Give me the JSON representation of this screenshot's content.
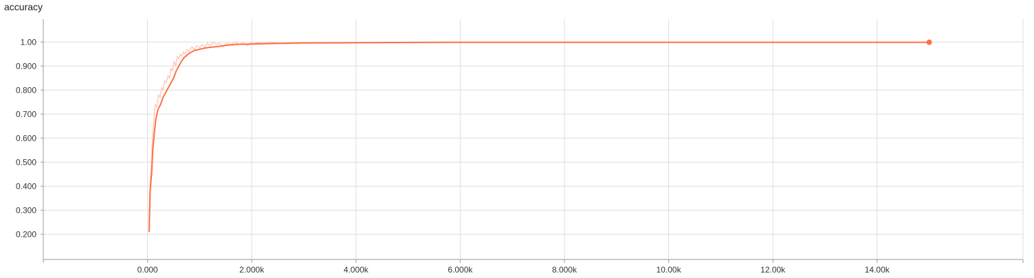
{
  "chart_data": {
    "type": "line",
    "title": "accuracy",
    "xlabel": "",
    "ylabel": "",
    "grid": true,
    "xlim": [
      -2000,
      16800
    ],
    "ylim": [
      0.095,
      1.095
    ],
    "x_ticks": [
      0,
      2000,
      4000,
      6000,
      8000,
      10000,
      12000,
      14000
    ],
    "x_tick_labels": [
      "0.000",
      "2.000k",
      "4.000k",
      "6.000k",
      "8.000k",
      "10.00k",
      "12.00k",
      "14.00k"
    ],
    "y_ticks": [
      0.2,
      0.3,
      0.4,
      0.5,
      0.6,
      0.7,
      0.8,
      0.9,
      1.0
    ],
    "y_tick_labels": [
      "0.200",
      "0.300",
      "0.400",
      "0.500",
      "0.600",
      "0.700",
      "0.800",
      "0.900",
      "1.00"
    ],
    "colors": {
      "line": "#ff7043",
      "raw": "#ffccbc",
      "grid": "#dddddd",
      "axis": "#999999"
    },
    "series": [
      {
        "role": "smoothed",
        "x": [
          30,
          50,
          80,
          100,
          130,
          160,
          200,
          250,
          300,
          350,
          400,
          450,
          500,
          550,
          600,
          650,
          700,
          800,
          900,
          1000,
          1100,
          1200,
          1300,
          1400,
          1500,
          1600,
          1700,
          1800,
          1900,
          2000,
          2500,
          3000,
          4000,
          5000,
          6000,
          8000,
          10000,
          12000,
          15000
        ],
        "y": [
          0.21,
          0.38,
          0.46,
          0.55,
          0.62,
          0.68,
          0.72,
          0.74,
          0.77,
          0.79,
          0.81,
          0.83,
          0.85,
          0.88,
          0.9,
          0.92,
          0.935,
          0.953,
          0.965,
          0.97,
          0.975,
          0.978,
          0.98,
          0.983,
          0.986,
          0.988,
          0.99,
          0.991,
          0.991,
          0.992,
          0.994,
          0.996,
          0.997,
          0.998,
          0.999,
          0.999,
          0.999,
          0.999,
          0.999
        ]
      },
      {
        "role": "raw",
        "x": [
          30,
          50,
          70,
          90,
          110,
          130,
          150,
          180,
          210,
          240,
          270,
          300,
          330,
          360,
          390,
          420,
          450,
          480,
          510,
          540,
          570,
          600,
          630,
          660,
          690,
          720,
          760,
          800,
          850,
          900,
          950,
          1000,
          1050,
          1100,
          1150,
          1200,
          1260,
          1320,
          1380,
          1450,
          1520,
          1600,
          1680,
          1760,
          1840,
          1920,
          2000,
          2200,
          2400,
          2600,
          3000,
          3500,
          4000,
          4500,
          5000,
          6000,
          8000,
          10000,
          12000,
          15000
        ],
        "y": [
          0.25,
          0.42,
          0.48,
          0.58,
          0.64,
          0.7,
          0.74,
          0.73,
          0.78,
          0.77,
          0.81,
          0.8,
          0.84,
          0.83,
          0.86,
          0.85,
          0.89,
          0.88,
          0.92,
          0.9,
          0.94,
          0.93,
          0.95,
          0.94,
          0.96,
          0.95,
          0.97,
          0.96,
          0.98,
          0.97,
          0.985,
          0.975,
          0.99,
          0.98,
          0.995,
          0.985,
          1.0,
          0.99,
          0.995,
          0.98,
          0.995,
          0.99,
          1.0,
          0.99,
          0.995,
          0.985,
          1.0,
          0.995,
          0.998,
          0.995,
          0.998,
          0.997,
          0.998,
          0.997,
          0.999,
          0.999,
          0.999,
          0.999,
          0.999,
          0.999
        ]
      }
    ]
  }
}
